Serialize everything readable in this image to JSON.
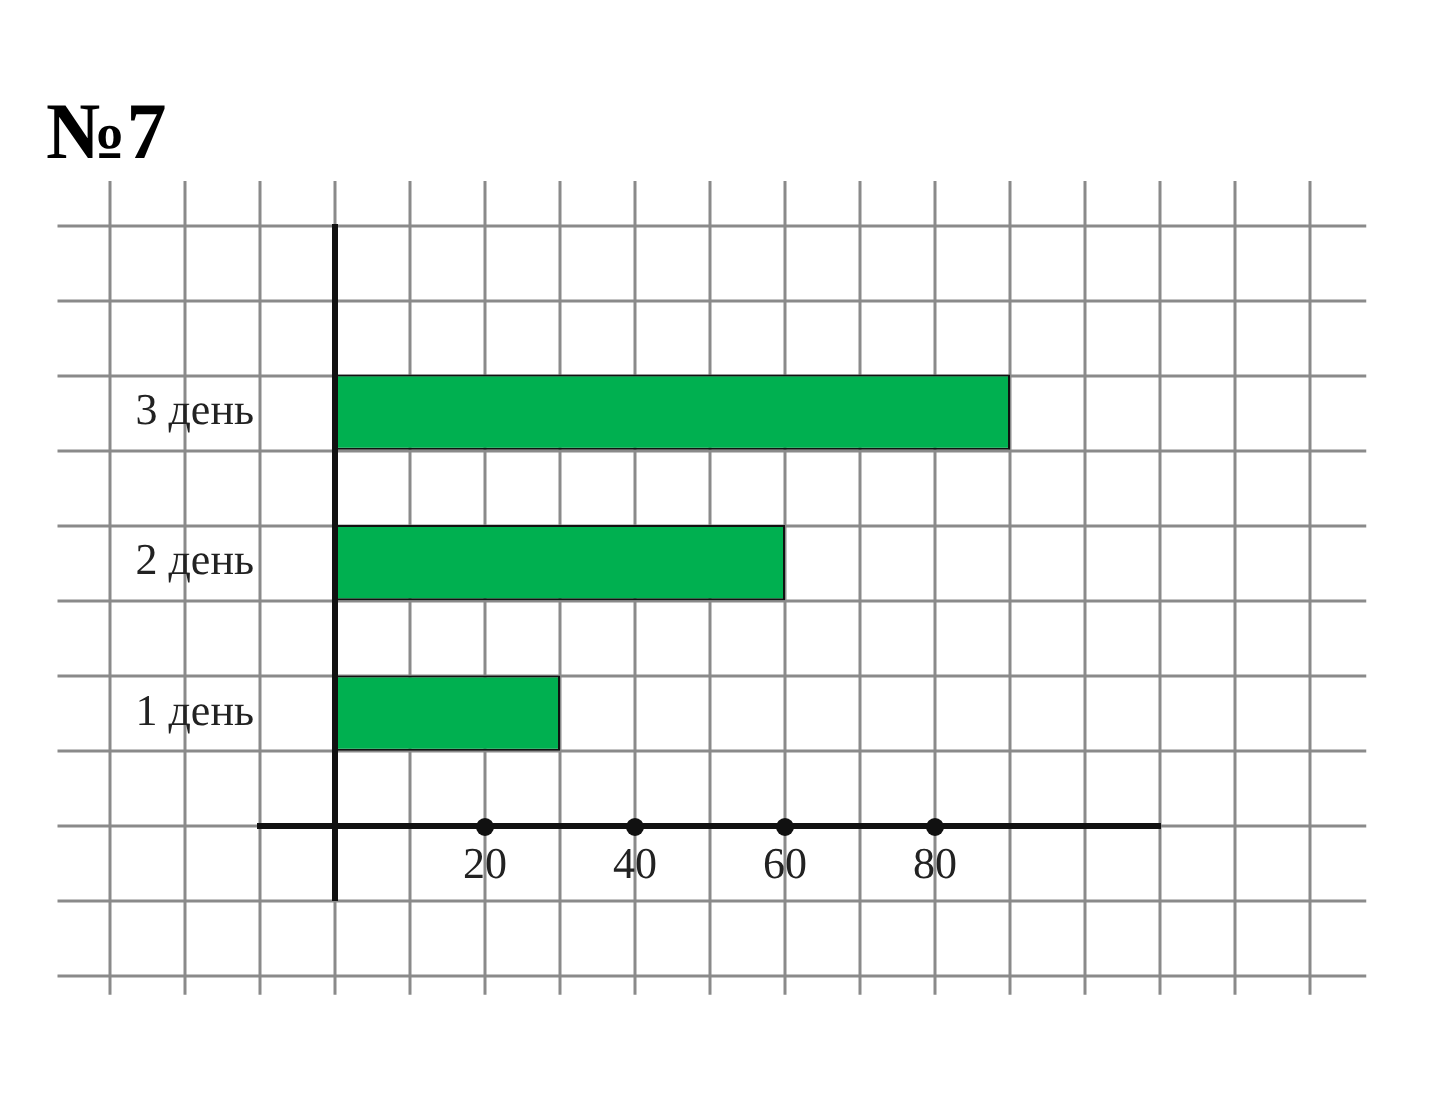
{
  "chart_data": {
    "type": "bar",
    "orientation": "horizontal",
    "title": "№7",
    "categories": [
      "3 день",
      "2 день",
      "1 день"
    ],
    "values": [
      90,
      60,
      30
    ],
    "color": "#00b050",
    "xlim": [
      -10,
      110
    ],
    "xticks": [
      {
        "value": -10,
        "label": null
      },
      {
        "value": 0,
        "label": null
      },
      {
        "value": 10,
        "label": null
      },
      20,
      {
        "value": 30,
        "label": null
      },
      40,
      {
        "value": 50,
        "label": null
      },
      60,
      {
        "value": 70,
        "label": null
      },
      80,
      {
        "value": 90,
        "label": null
      },
      {
        "value": 100,
        "label": null
      },
      {
        "value": 110,
        "label": null
      }
    ],
    "grid": true
  }
}
